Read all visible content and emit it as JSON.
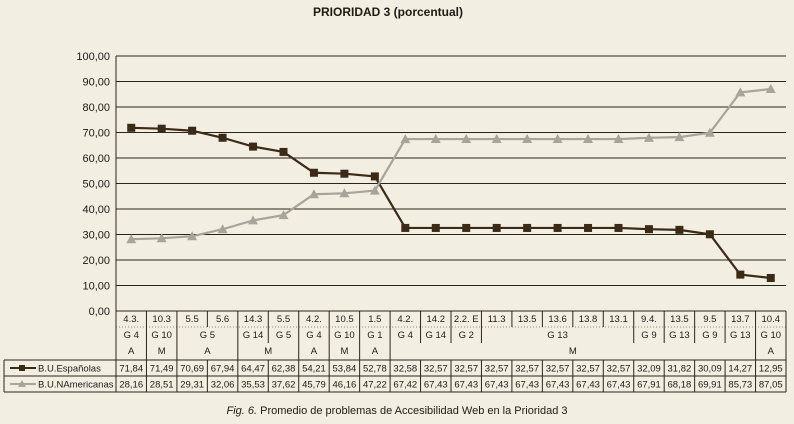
{
  "chart_data": {
    "type": "line",
    "title": "PRIORIDAD 3 (porcentual)",
    "caption_prefix": "Fig. 6.",
    "caption_text": "Promedio de problemas de Accesibilidad Web en la Prioridad 3",
    "ylim": [
      0,
      100
    ],
    "yticks": [
      "0,00",
      "10,00",
      "20,00",
      "30,00",
      "40,00",
      "50,00",
      "60,00",
      "70,00",
      "80,00",
      "90,00",
      "100,00"
    ],
    "grid": true,
    "row1": [
      "4.3.",
      "10.3",
      "5.5",
      "5.6",
      "14.3",
      "5.5",
      "4.2.",
      "10.5",
      "1.5",
      "4.2.",
      "14.2",
      "2.2. E",
      "11.3",
      "13.5",
      "13.6",
      "13.8",
      "13.1",
      "9.4.",
      "13.5",
      "9.5",
      "13.7",
      "10.4"
    ],
    "row2_groups": [
      {
        "label": "G 4",
        "span": 1
      },
      {
        "label": "G 10",
        "span": 1
      },
      {
        "label": "G 5",
        "span": 2
      },
      {
        "label": "G 14",
        "span": 1
      },
      {
        "label": "G 5",
        "span": 1
      },
      {
        "label": "G 4",
        "span": 1
      },
      {
        "label": "G 10",
        "span": 1
      },
      {
        "label": "G 1",
        "span": 1
      },
      {
        "label": "G 4",
        "span": 1
      },
      {
        "label": "G 14",
        "span": 1
      },
      {
        "label": "G 2",
        "span": 1
      },
      {
        "label": "G 13",
        "span": 5
      },
      {
        "label": "G 9",
        "span": 1
      },
      {
        "label": "G 13",
        "span": 1
      },
      {
        "label": "G 9",
        "span": 1
      },
      {
        "label": "G 13",
        "span": 1
      },
      {
        "label": "G 10",
        "span": 1
      }
    ],
    "row3_groups": [
      {
        "label": "A",
        "span": 1
      },
      {
        "label": "M",
        "span": 1
      },
      {
        "label": "A",
        "span": 2
      },
      {
        "label": "M",
        "span": 2
      },
      {
        "label": "A",
        "span": 1
      },
      {
        "label": "M",
        "span": 1
      },
      {
        "label": "A",
        "span": 1
      },
      {
        "label": "M",
        "span": 12
      },
      {
        "label": "A",
        "span": 1
      }
    ],
    "series": [
      {
        "name": "B.U.Españolas",
        "color": "#3a2a16",
        "marker": "square",
        "values": [
          71.84,
          71.49,
          70.69,
          67.94,
          64.47,
          62.38,
          54.21,
          53.84,
          52.78,
          32.58,
          32.57,
          32.57,
          32.57,
          32.57,
          32.57,
          32.57,
          32.57,
          32.09,
          31.82,
          30.09,
          14.27,
          12.95
        ],
        "labels": [
          "71,84",
          "71,49",
          "70,69",
          "67,94",
          "64,47",
          "62,38",
          "54,21",
          "53,84",
          "52,78",
          "32,58",
          "32,57",
          "32,57",
          "32,57",
          "32,57",
          "32,57",
          "32,57",
          "32,57",
          "32,09",
          "31,82",
          "30,09",
          "14,27",
          "12,95"
        ]
      },
      {
        "name": "B.U.NAmericanas",
        "color": "#a8a49a",
        "marker": "triangle",
        "values": [
          28.16,
          28.51,
          29.31,
          32.06,
          35.53,
          37.62,
          45.79,
          46.16,
          47.22,
          67.42,
          67.43,
          67.43,
          67.43,
          67.43,
          67.43,
          67.43,
          67.43,
          67.91,
          68.18,
          69.91,
          85.73,
          87.05
        ],
        "labels": [
          "28,16",
          "28,51",
          "29,31",
          "32,06",
          "35,53",
          "37,62",
          "45,79",
          "46,16",
          "47,22",
          "67,42",
          "67,43",
          "67,43",
          "67,43",
          "67,43",
          "67,43",
          "67,43",
          "67,43",
          "67,91",
          "68,18",
          "69,91",
          "85,73",
          "87,05"
        ]
      }
    ]
  }
}
